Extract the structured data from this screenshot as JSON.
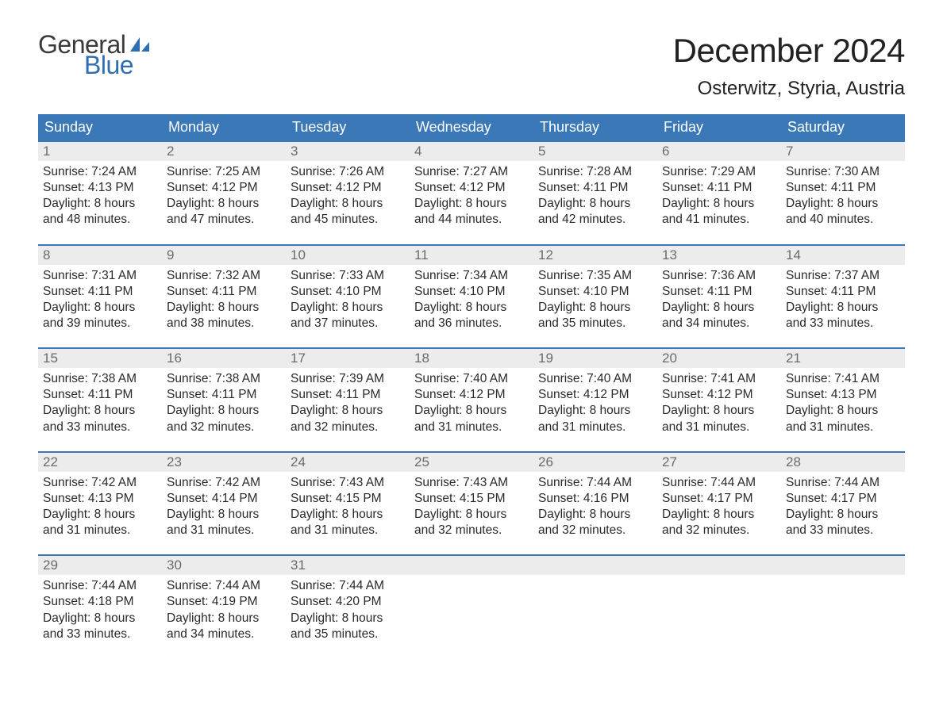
{
  "logo": {
    "text_general": "General",
    "text_blue": "Blue",
    "general_color": "#3a3a3a",
    "blue_color": "#2f6fb0",
    "sail_color": "#2f6fb0"
  },
  "header": {
    "month_title": "December 2024",
    "location": "Osterwitz, Styria, Austria"
  },
  "colors": {
    "header_bg": "#3b78b8",
    "header_text": "#ffffff",
    "week_border": "#3b78b8",
    "daynum_bg": "#ececec",
    "daynum_text": "#6b6b6b",
    "body_text": "#2a2a2a",
    "background": "#ffffff"
  },
  "day_headers": [
    "Sunday",
    "Monday",
    "Tuesday",
    "Wednesday",
    "Thursday",
    "Friday",
    "Saturday"
  ],
  "weeks": [
    [
      {
        "day": "1",
        "sunrise": "Sunrise: 7:24 AM",
        "sunset": "Sunset: 4:13 PM",
        "daylight1": "Daylight: 8 hours",
        "daylight2": "and 48 minutes."
      },
      {
        "day": "2",
        "sunrise": "Sunrise: 7:25 AM",
        "sunset": "Sunset: 4:12 PM",
        "daylight1": "Daylight: 8 hours",
        "daylight2": "and 47 minutes."
      },
      {
        "day": "3",
        "sunrise": "Sunrise: 7:26 AM",
        "sunset": "Sunset: 4:12 PM",
        "daylight1": "Daylight: 8 hours",
        "daylight2": "and 45 minutes."
      },
      {
        "day": "4",
        "sunrise": "Sunrise: 7:27 AM",
        "sunset": "Sunset: 4:12 PM",
        "daylight1": "Daylight: 8 hours",
        "daylight2": "and 44 minutes."
      },
      {
        "day": "5",
        "sunrise": "Sunrise: 7:28 AM",
        "sunset": "Sunset: 4:11 PM",
        "daylight1": "Daylight: 8 hours",
        "daylight2": "and 42 minutes."
      },
      {
        "day": "6",
        "sunrise": "Sunrise: 7:29 AM",
        "sunset": "Sunset: 4:11 PM",
        "daylight1": "Daylight: 8 hours",
        "daylight2": "and 41 minutes."
      },
      {
        "day": "7",
        "sunrise": "Sunrise: 7:30 AM",
        "sunset": "Sunset: 4:11 PM",
        "daylight1": "Daylight: 8 hours",
        "daylight2": "and 40 minutes."
      }
    ],
    [
      {
        "day": "8",
        "sunrise": "Sunrise: 7:31 AM",
        "sunset": "Sunset: 4:11 PM",
        "daylight1": "Daylight: 8 hours",
        "daylight2": "and 39 minutes."
      },
      {
        "day": "9",
        "sunrise": "Sunrise: 7:32 AM",
        "sunset": "Sunset: 4:11 PM",
        "daylight1": "Daylight: 8 hours",
        "daylight2": "and 38 minutes."
      },
      {
        "day": "10",
        "sunrise": "Sunrise: 7:33 AM",
        "sunset": "Sunset: 4:10 PM",
        "daylight1": "Daylight: 8 hours",
        "daylight2": "and 37 minutes."
      },
      {
        "day": "11",
        "sunrise": "Sunrise: 7:34 AM",
        "sunset": "Sunset: 4:10 PM",
        "daylight1": "Daylight: 8 hours",
        "daylight2": "and 36 minutes."
      },
      {
        "day": "12",
        "sunrise": "Sunrise: 7:35 AM",
        "sunset": "Sunset: 4:10 PM",
        "daylight1": "Daylight: 8 hours",
        "daylight2": "and 35 minutes."
      },
      {
        "day": "13",
        "sunrise": "Sunrise: 7:36 AM",
        "sunset": "Sunset: 4:11 PM",
        "daylight1": "Daylight: 8 hours",
        "daylight2": "and 34 minutes."
      },
      {
        "day": "14",
        "sunrise": "Sunrise: 7:37 AM",
        "sunset": "Sunset: 4:11 PM",
        "daylight1": "Daylight: 8 hours",
        "daylight2": "and 33 minutes."
      }
    ],
    [
      {
        "day": "15",
        "sunrise": "Sunrise: 7:38 AM",
        "sunset": "Sunset: 4:11 PM",
        "daylight1": "Daylight: 8 hours",
        "daylight2": "and 33 minutes."
      },
      {
        "day": "16",
        "sunrise": "Sunrise: 7:38 AM",
        "sunset": "Sunset: 4:11 PM",
        "daylight1": "Daylight: 8 hours",
        "daylight2": "and 32 minutes."
      },
      {
        "day": "17",
        "sunrise": "Sunrise: 7:39 AM",
        "sunset": "Sunset: 4:11 PM",
        "daylight1": "Daylight: 8 hours",
        "daylight2": "and 32 minutes."
      },
      {
        "day": "18",
        "sunrise": "Sunrise: 7:40 AM",
        "sunset": "Sunset: 4:12 PM",
        "daylight1": "Daylight: 8 hours",
        "daylight2": "and 31 minutes."
      },
      {
        "day": "19",
        "sunrise": "Sunrise: 7:40 AM",
        "sunset": "Sunset: 4:12 PM",
        "daylight1": "Daylight: 8 hours",
        "daylight2": "and 31 minutes."
      },
      {
        "day": "20",
        "sunrise": "Sunrise: 7:41 AM",
        "sunset": "Sunset: 4:12 PM",
        "daylight1": "Daylight: 8 hours",
        "daylight2": "and 31 minutes."
      },
      {
        "day": "21",
        "sunrise": "Sunrise: 7:41 AM",
        "sunset": "Sunset: 4:13 PM",
        "daylight1": "Daylight: 8 hours",
        "daylight2": "and 31 minutes."
      }
    ],
    [
      {
        "day": "22",
        "sunrise": "Sunrise: 7:42 AM",
        "sunset": "Sunset: 4:13 PM",
        "daylight1": "Daylight: 8 hours",
        "daylight2": "and 31 minutes."
      },
      {
        "day": "23",
        "sunrise": "Sunrise: 7:42 AM",
        "sunset": "Sunset: 4:14 PM",
        "daylight1": "Daylight: 8 hours",
        "daylight2": "and 31 minutes."
      },
      {
        "day": "24",
        "sunrise": "Sunrise: 7:43 AM",
        "sunset": "Sunset: 4:15 PM",
        "daylight1": "Daylight: 8 hours",
        "daylight2": "and 31 minutes."
      },
      {
        "day": "25",
        "sunrise": "Sunrise: 7:43 AM",
        "sunset": "Sunset: 4:15 PM",
        "daylight1": "Daylight: 8 hours",
        "daylight2": "and 32 minutes."
      },
      {
        "day": "26",
        "sunrise": "Sunrise: 7:44 AM",
        "sunset": "Sunset: 4:16 PM",
        "daylight1": "Daylight: 8 hours",
        "daylight2": "and 32 minutes."
      },
      {
        "day": "27",
        "sunrise": "Sunrise: 7:44 AM",
        "sunset": "Sunset: 4:17 PM",
        "daylight1": "Daylight: 8 hours",
        "daylight2": "and 32 minutes."
      },
      {
        "day": "28",
        "sunrise": "Sunrise: 7:44 AM",
        "sunset": "Sunset: 4:17 PM",
        "daylight1": "Daylight: 8 hours",
        "daylight2": "and 33 minutes."
      }
    ],
    [
      {
        "day": "29",
        "sunrise": "Sunrise: 7:44 AM",
        "sunset": "Sunset: 4:18 PM",
        "daylight1": "Daylight: 8 hours",
        "daylight2": "and 33 minutes."
      },
      {
        "day": "30",
        "sunrise": "Sunrise: 7:44 AM",
        "sunset": "Sunset: 4:19 PM",
        "daylight1": "Daylight: 8 hours",
        "daylight2": "and 34 minutes."
      },
      {
        "day": "31",
        "sunrise": "Sunrise: 7:44 AM",
        "sunset": "Sunset: 4:20 PM",
        "daylight1": "Daylight: 8 hours",
        "daylight2": "and 35 minutes."
      },
      null,
      null,
      null,
      null
    ]
  ]
}
